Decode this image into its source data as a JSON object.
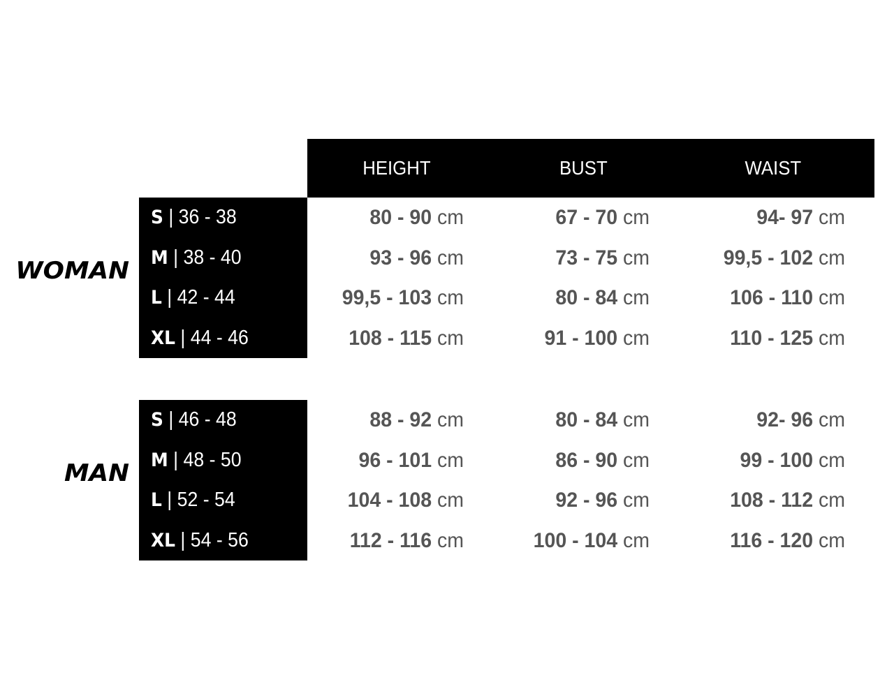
{
  "headers": [
    "HEIGHT",
    "BUST",
    "WAIST"
  ],
  "unit": "cm",
  "groups": [
    {
      "label": "WOMAN",
      "rows": [
        {
          "size": "S",
          "eu": "| 36 - 38",
          "height": "80 - 90",
          "bust": "67 - 70",
          "waist": "94- 97"
        },
        {
          "size": "M",
          "eu": "| 38 - 40",
          "height": "93 - 96",
          "bust": "73 - 75",
          "waist": "99,5 - 102"
        },
        {
          "size": "L",
          "eu": "| 42 - 44",
          "height": "99,5 - 103",
          "bust": "80 - 84",
          "waist": "106 - 110"
        },
        {
          "size": "XL",
          "eu": "| 44 - 46",
          "height": "108 - 115",
          "bust": "91 - 100",
          "waist": "110 - 125"
        }
      ]
    },
    {
      "label": "MAN",
      "rows": [
        {
          "size": "S",
          "eu": "| 46 - 48",
          "height": "88 - 92",
          "bust": "80 - 84",
          "waist": "92- 96"
        },
        {
          "size": "M",
          "eu": "| 48 - 50",
          "height": "96 - 101",
          "bust": "86 - 90",
          "waist": "99 - 100"
        },
        {
          "size": "L",
          "eu": "| 52 - 54",
          "height": "104 - 108",
          "bust": "92 - 96",
          "waist": "108 - 112"
        },
        {
          "size": "XL",
          "eu": "| 54 - 56",
          "height": "112 - 116",
          "bust": "100 - 104",
          "waist": "116 - 120"
        }
      ]
    }
  ]
}
